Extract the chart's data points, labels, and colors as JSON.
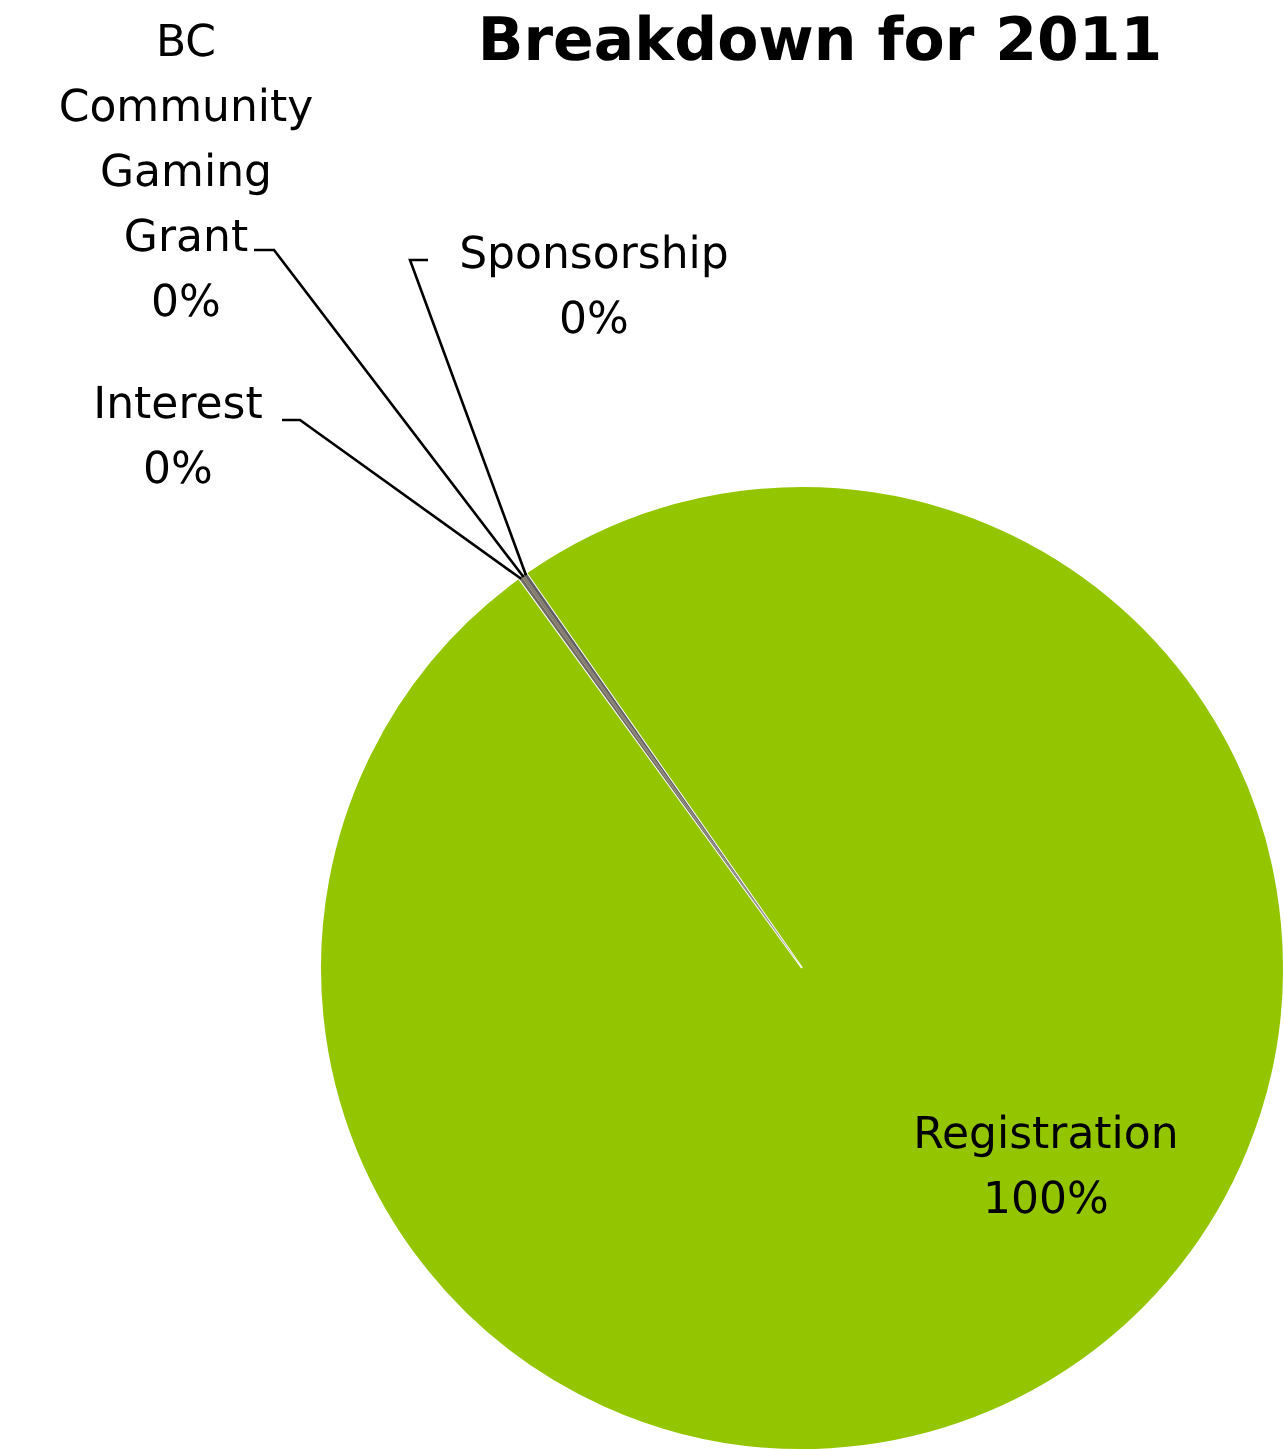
{
  "chart_data": {
    "type": "pie",
    "title": "Breakdown for 2011",
    "categories": [
      "Registration",
      "Interest",
      "BC Community Gaming Grant",
      "Sponsorship"
    ],
    "values": [
      99.7,
      0.1,
      0.1,
      0.1
    ],
    "value_labels": [
      "100%",
      "0%",
      "0%",
      "0%"
    ],
    "colors": [
      "#94c600",
      "#6f6b60",
      "#847b6c",
      "#5f5f5f"
    ],
    "legend": false
  }
}
